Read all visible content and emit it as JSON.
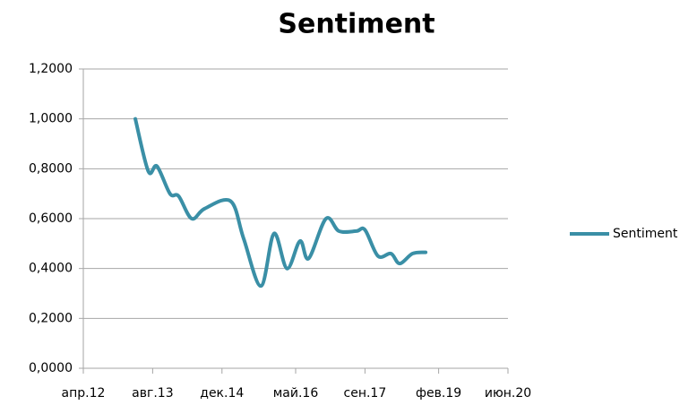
{
  "chart_data": {
    "type": "line",
    "title": "Sentiment",
    "x": [
      "2013-04",
      "2013-07",
      "2013-09",
      "2013-12",
      "2014-02",
      "2014-05",
      "2014-08",
      "2015-02",
      "2015-05",
      "2015-09",
      "2015-12",
      "2016-03",
      "2016-06",
      "2016-08",
      "2016-12",
      "2017-03",
      "2017-07",
      "2017-09",
      "2017-12",
      "2018-03",
      "2018-05",
      "2018-08",
      "2018-11"
    ],
    "series": [
      {
        "name": "Sentiment",
        "color": "#3a8fa6",
        "values": [
          1.0,
          0.79,
          0.81,
          0.7,
          0.69,
          0.6,
          0.64,
          0.67,
          0.52,
          0.33,
          0.54,
          0.4,
          0.51,
          0.44,
          0.6,
          0.55,
          0.55,
          0.555,
          0.45,
          0.46,
          0.42,
          0.46,
          0.465
        ]
      }
    ],
    "xlim": [
      "2012-04",
      "2020-06"
    ],
    "xticks": [
      {
        "value": "2012-04",
        "label": "апр.12"
      },
      {
        "value": "2013-08",
        "label": "авг.13"
      },
      {
        "value": "2014-12",
        "label": "дек.14"
      },
      {
        "value": "2016-05",
        "label": "май.16"
      },
      {
        "value": "2017-09",
        "label": "сен.17"
      },
      {
        "value": "2019-02",
        "label": "фев.19"
      },
      {
        "value": "2020-06",
        "label": "июн.20"
      }
    ],
    "ylim": [
      0,
      1.2
    ],
    "yticks": [
      {
        "value": 0,
        "label": "0,0000"
      },
      {
        "value": 0.2,
        "label": "0,2000"
      },
      {
        "value": 0.4,
        "label": "0,4000"
      },
      {
        "value": 0.6,
        "label": "0,6000"
      },
      {
        "value": 0.8,
        "label": "0,8000"
      },
      {
        "value": 1.0,
        "label": "1,0000"
      },
      {
        "value": 1.2,
        "label": "1,2000"
      }
    ],
    "grid": true,
    "legend": "right"
  }
}
